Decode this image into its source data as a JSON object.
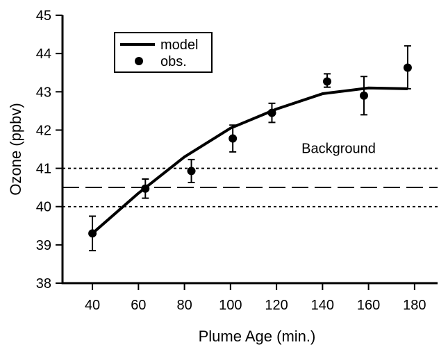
{
  "chart_data": {
    "type": "line",
    "xlabel": "Plume Age  (min.)",
    "ylabel": "Ozone  (ppbv)",
    "xlim": [
      27,
      190
    ],
    "ylim": [
      38,
      45
    ],
    "x_ticks": [
      40,
      60,
      80,
      100,
      120,
      140,
      160,
      180
    ],
    "y_ticks": [
      38,
      39,
      40,
      41,
      42,
      43,
      44,
      45
    ],
    "grid": false,
    "legend_placement": "top-left",
    "series": [
      {
        "name": "model",
        "kind": "line",
        "color": "#000000",
        "x": [
          40,
          60,
          80,
          100,
          120,
          140,
          160,
          177
        ],
        "y": [
          39.3,
          40.35,
          41.3,
          42.05,
          42.55,
          42.95,
          43.1,
          43.08
        ]
      },
      {
        "name": "obs.",
        "kind": "scatter",
        "color": "#000000",
        "x": [
          40,
          63,
          83,
          101,
          118,
          142,
          158,
          177
        ],
        "y": [
          39.3,
          40.47,
          40.93,
          41.78,
          42.45,
          43.27,
          42.9,
          43.63
        ],
        "yerr_low": [
          0.45,
          0.25,
          0.3,
          0.35,
          0.25,
          0.15,
          0.5,
          0.55
        ],
        "yerr_high": [
          0.45,
          0.25,
          0.3,
          0.35,
          0.25,
          0.2,
          0.5,
          0.57
        ]
      }
    ],
    "reference_lines": [
      {
        "y": 41.0,
        "style": "dotted"
      },
      {
        "y": 40.5,
        "style": "dashed"
      },
      {
        "y": 40.0,
        "style": "dotted"
      }
    ],
    "annotations": [
      {
        "text": "Background",
        "x": 147,
        "y": 41.4
      }
    ]
  }
}
